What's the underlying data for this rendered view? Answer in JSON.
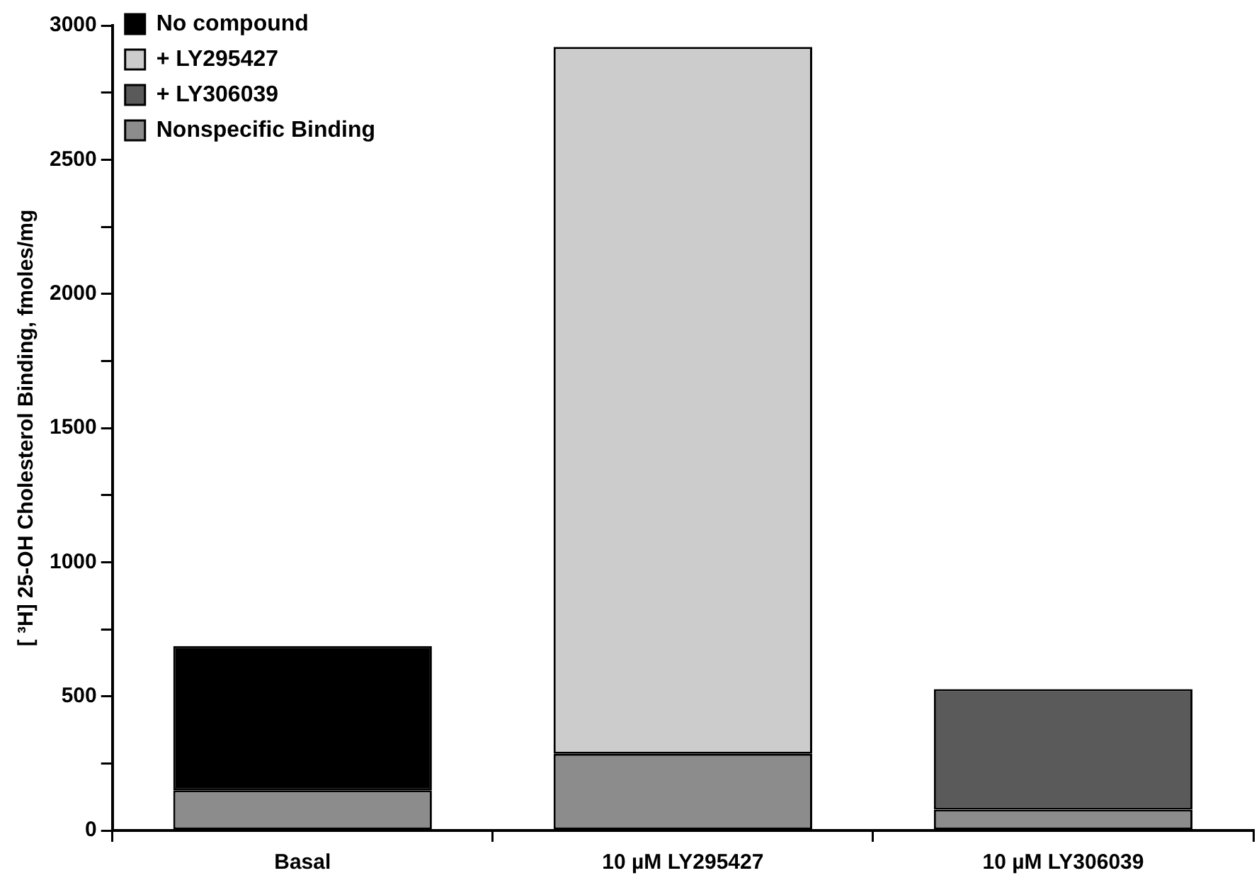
{
  "chart_data": {
    "type": "bar",
    "stacked": true,
    "ylabel": "[ ³H] 25-OH Cholesterol Binding, fmoles/mg",
    "categories": [
      "Basal",
      "10 µM LY295427",
      "10 µM LY306039"
    ],
    "series": [
      {
        "name": "Nonspecific Binding",
        "color": "#8c8c8c",
        "values": [
          150,
          286,
          78
        ]
      },
      {
        "name": "+ LY306039",
        "color": "#5a5a5a",
        "values": [
          null,
          null,
          449
        ]
      },
      {
        "name": "+ LY295427",
        "color": "#cccccc",
        "values": [
          null,
          2634,
          null
        ]
      },
      {
        "name": "No compound",
        "color": "#000000",
        "values": [
          537,
          null,
          null
        ]
      }
    ],
    "ylim": [
      0,
      3000
    ],
    "yticks": [
      0,
      {
        "value": 250,
        "label": null
      },
      500,
      {
        "value": 750,
        "label": null
      },
      1000,
      {
        "value": 1250,
        "label": null
      },
      1500,
      {
        "value": 1750,
        "label": null
      },
      2000,
      {
        "value": 2250,
        "label": null
      },
      2500,
      {
        "value": 2750,
        "label": null
      },
      3000
    ],
    "grid": false,
    "legend": "top left"
  }
}
